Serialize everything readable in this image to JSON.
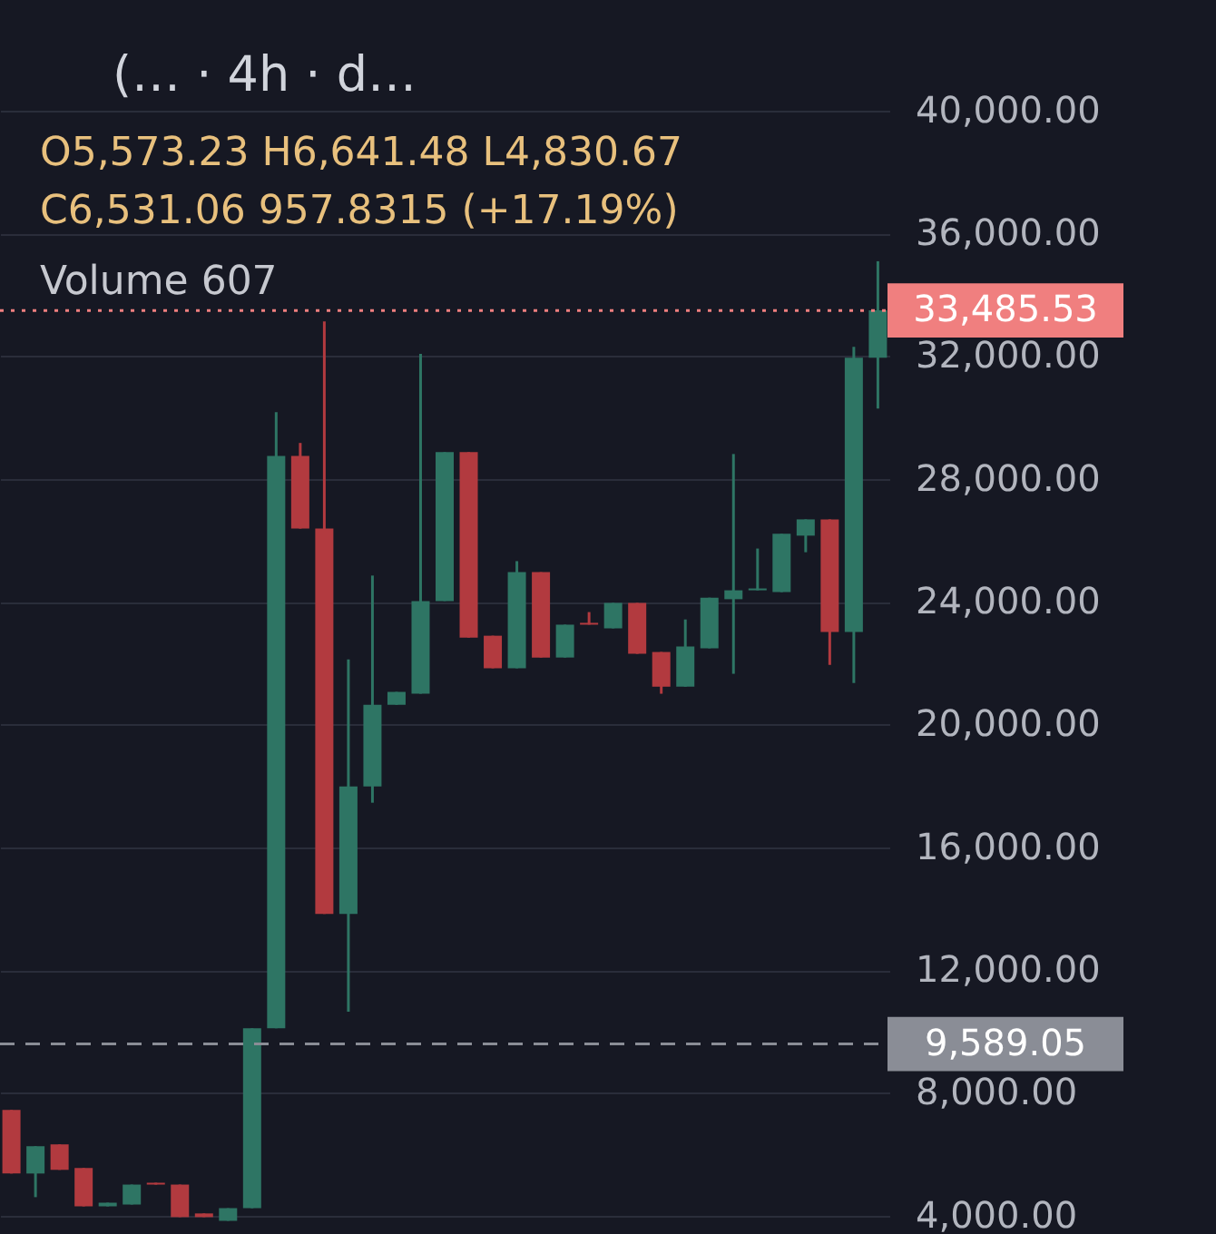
{
  "chart_data": {
    "type": "candlestick",
    "title": "(…  · 4h · d…",
    "annotations": [
      "O5,573.23  H6,641.48  L4,830.67",
      "C6,531.06  957.8315 (+17.19%)",
      "Volume  607"
    ],
    "categories": [
      null,
      null,
      null,
      null,
      null,
      null,
      null,
      null,
      null,
      null,
      null,
      null,
      null,
      null,
      null,
      null,
      null,
      null,
      null,
      null,
      null,
      null,
      null,
      null,
      null,
      null,
      null,
      null,
      null,
      null,
      null,
      null,
      null,
      null,
      null,
      null,
      null
    ],
    "ohlc": [
      [
        7440,
        7440,
        5370,
        5370
      ],
      [
        5370,
        6260,
        4600,
        6260
      ],
      [
        6320,
        6320,
        5490,
        5490
      ],
      [
        5550,
        5550,
        4300,
        4300
      ],
      [
        4300,
        4420,
        4300,
        4420
      ],
      [
        4360,
        5010,
        4360,
        5010
      ],
      [
        5070,
        5070,
        5010,
        5010
      ],
      [
        5010,
        5010,
        3950,
        3950
      ],
      [
        4070,
        4070,
        3950,
        3950
      ],
      [
        3830,
        4240,
        3830,
        4240
      ],
      [
        4240,
        10100,
        4240,
        10100
      ],
      [
        10100,
        30170,
        10100,
        28750
      ],
      [
        28750,
        29170,
        26380,
        26380
      ],
      [
        26380,
        33130,
        13830,
        13830
      ],
      [
        13830,
        22120,
        10640,
        17980
      ],
      [
        17980,
        24850,
        17450,
        20640
      ],
      [
        20640,
        21060,
        20640,
        21060
      ],
      [
        21000,
        32070,
        21000,
        24020
      ],
      [
        24020,
        28870,
        24020,
        28870
      ],
      [
        28870,
        28870,
        22830,
        22830
      ],
      [
        22890,
        22890,
        21830,
        21830
      ],
      [
        21830,
        25320,
        21830,
        24960
      ],
      [
        24960,
        24960,
        22180,
        22180
      ],
      [
        22180,
        23250,
        22180,
        23250
      ],
      [
        23310,
        23660,
        23250,
        23250
      ],
      [
        23130,
        23960,
        23130,
        23960
      ],
      [
        23960,
        23960,
        22300,
        22300
      ],
      [
        22360,
        22360,
        21000,
        21230
      ],
      [
        21230,
        23420,
        21230,
        22540
      ],
      [
        22480,
        24130,
        22480,
        24130
      ],
      [
        24080,
        28810,
        21650,
        24370
      ],
      [
        24370,
        25730,
        24370,
        24430
      ],
      [
        24310,
        26210,
        24310,
        26210
      ],
      [
        26150,
        26680,
        25610,
        26680
      ],
      [
        26680,
        26680,
        21940,
        23010
      ],
      [
        23010,
        32300,
        21350,
        31950
      ],
      [
        31950,
        35090,
        30290,
        33490
      ]
    ],
    "colors": [
      "#b23a3f",
      "#2e7564",
      "#b23a3f",
      "#b23a3f",
      "#2e7564",
      "#2e7564",
      "#b23a3f",
      "#b23a3f",
      "#b23a3f",
      "#2e7564",
      "#2e7564",
      "#2e7564",
      "#b23a3f",
      "#b23a3f",
      "#2e7564",
      "#2e7564",
      "#2e7564",
      "#2e7564",
      "#2e7564",
      "#b23a3f",
      "#b23a3f",
      "#2e7564",
      "#b23a3f",
      "#2e7564",
      "#b23a3f",
      "#2e7564",
      "#b23a3f",
      "#b23a3f",
      "#2e7564",
      "#2e7564",
      "#2e7564",
      "#2e7564",
      "#2e7564",
      "#2e7564",
      "#b23a3f",
      "#2e7564",
      "#2e7564"
    ],
    "ylim": [
      3400,
      43600
    ],
    "yticks": [
      {
        "value": 4000,
        "label": "4,000.00"
      },
      {
        "value": 8000,
        "label": "8,000.00"
      },
      {
        "value": 12000,
        "label": "12,000.00"
      },
      {
        "value": 16000,
        "label": "16,000.00"
      },
      {
        "value": 20000,
        "label": "20,000.00"
      },
      {
        "value": 24000,
        "label": "24,000.00"
      },
      {
        "value": 28000,
        "label": "28,000.00"
      },
      {
        "value": 32000,
        "label": "32,000.00"
      },
      {
        "value": 36000,
        "label": "36,000.00"
      },
      {
        "value": 40000,
        "label": "40,000.00"
      }
    ],
    "ref_lines": [
      {
        "axis": "y",
        "value": 33485.53,
        "label": "33,485.53",
        "color": "#f07f7f",
        "line_style": "dotted"
      },
      {
        "axis": "y",
        "value": 9589.05,
        "label": "9,589.05",
        "color": "#8a8d96",
        "line_style": "dashed"
      }
    ],
    "grid": "y",
    "tick_labels": "y"
  }
}
